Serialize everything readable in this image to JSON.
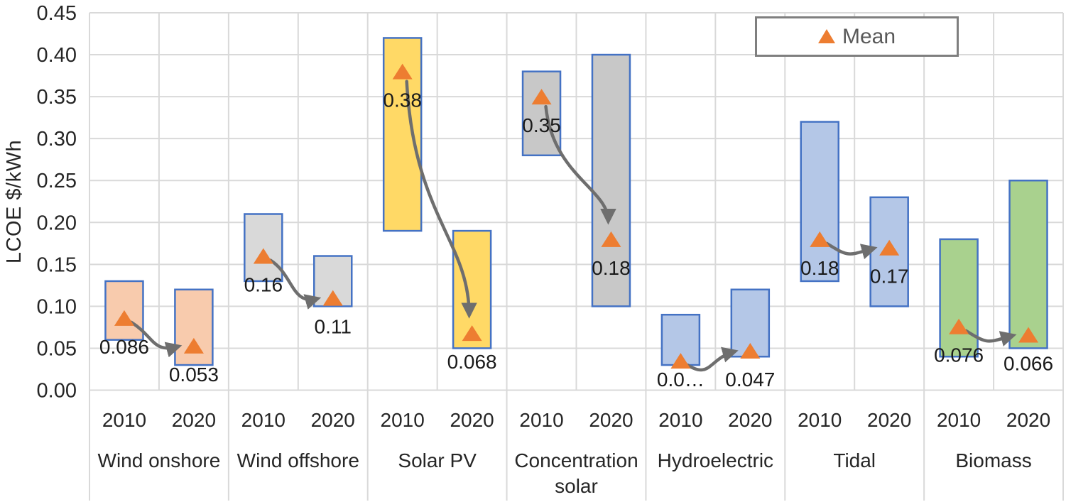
{
  "chart_data": {
    "type": "bar",
    "subtype": "floating range columns (min–max) with mean markers and year-to-year trend arrows",
    "title": "",
    "ylabel": "LCOE $/kWh",
    "xlabel": "",
    "ylim": [
      0,
      0.45
    ],
    "ytick_step": 0.05,
    "ytick_labels": [
      "0.00",
      "0.05",
      "0.10",
      "0.15",
      "0.20",
      "0.25",
      "0.30",
      "0.35",
      "0.40",
      "0.45"
    ],
    "grid": true,
    "legend": {
      "label": "Mean",
      "marker": "triangle",
      "position": "top-right"
    },
    "years": [
      "2010",
      "2020"
    ],
    "categories": [
      "Wind onshore",
      "Wind offshore",
      "Solar PV",
      "Concentration solar",
      "Hydroelectric",
      "Tidal",
      "Biomass"
    ],
    "groups": [
      {
        "name": "Wind onshore",
        "fill": "#F8CBAD",
        "bars": [
          {
            "year": "2010",
            "range_low": 0.06,
            "range_high": 0.13,
            "mean": 0.086,
            "mean_label": "0.086"
          },
          {
            "year": "2020",
            "range_low": 0.03,
            "range_high": 0.12,
            "mean": 0.053,
            "mean_label": "0.053"
          }
        ]
      },
      {
        "name": "Wind offshore",
        "fill": "#D9D9D9",
        "bars": [
          {
            "year": "2010",
            "range_low": 0.13,
            "range_high": 0.21,
            "mean": 0.16,
            "mean_label": "0.16"
          },
          {
            "year": "2020",
            "range_low": 0.1,
            "range_high": 0.16,
            "mean": 0.11,
            "mean_label": "0.11"
          }
        ]
      },
      {
        "name": "Solar PV",
        "fill": "#FFD966",
        "bars": [
          {
            "year": "2010",
            "range_low": 0.19,
            "range_high": 0.42,
            "mean": 0.38,
            "mean_label": "0.38"
          },
          {
            "year": "2020",
            "range_low": 0.05,
            "range_high": 0.19,
            "mean": 0.068,
            "mean_label": "0.068"
          }
        ]
      },
      {
        "name": "Concentration solar",
        "fill": "#C8C8C8",
        "bars": [
          {
            "year": "2010",
            "range_low": 0.28,
            "range_high": 0.38,
            "mean": 0.35,
            "mean_label": "0.35"
          },
          {
            "year": "2020",
            "range_low": 0.1,
            "range_high": 0.4,
            "mean": 0.18,
            "mean_label": "0.18"
          }
        ]
      },
      {
        "name": "Hydroelectric",
        "fill": "#B4C7E7",
        "bars": [
          {
            "year": "2010",
            "range_low": 0.03,
            "range_high": 0.09,
            "mean": 0.035,
            "mean_label": "0.0…",
            "label_dy": 26
          },
          {
            "year": "2020",
            "range_low": 0.04,
            "range_high": 0.12,
            "mean": 0.047,
            "mean_label": "0.047"
          }
        ]
      },
      {
        "name": "Tidal",
        "fill": "#B4C7E7",
        "bars": [
          {
            "year": "2010",
            "range_low": 0.13,
            "range_high": 0.32,
            "mean": 0.18,
            "mean_label": "0.18"
          },
          {
            "year": "2020",
            "range_low": 0.1,
            "range_high": 0.23,
            "mean": 0.17,
            "mean_label": "0.17"
          }
        ]
      },
      {
        "name": "Biomass",
        "fill": "#A9D18E",
        "bars": [
          {
            "year": "2010",
            "range_low": 0.04,
            "range_high": 0.18,
            "mean": 0.076,
            "mean_label": "0.076"
          },
          {
            "year": "2020",
            "range_low": 0.05,
            "range_high": 0.25,
            "mean": 0.066,
            "mean_label": "0.066"
          }
        ]
      }
    ],
    "trend_arrows": true,
    "colors": {
      "bar_border": "#4472C4",
      "mean_marker": "#ED7D31",
      "arrow": "#6E6E6E",
      "gridline": "#D9D9D9",
      "axis_text": "#262626",
      "data_label": "#1A1A1A",
      "legend_border": "#7F7F7F",
      "legend_text": "#595959"
    }
  }
}
